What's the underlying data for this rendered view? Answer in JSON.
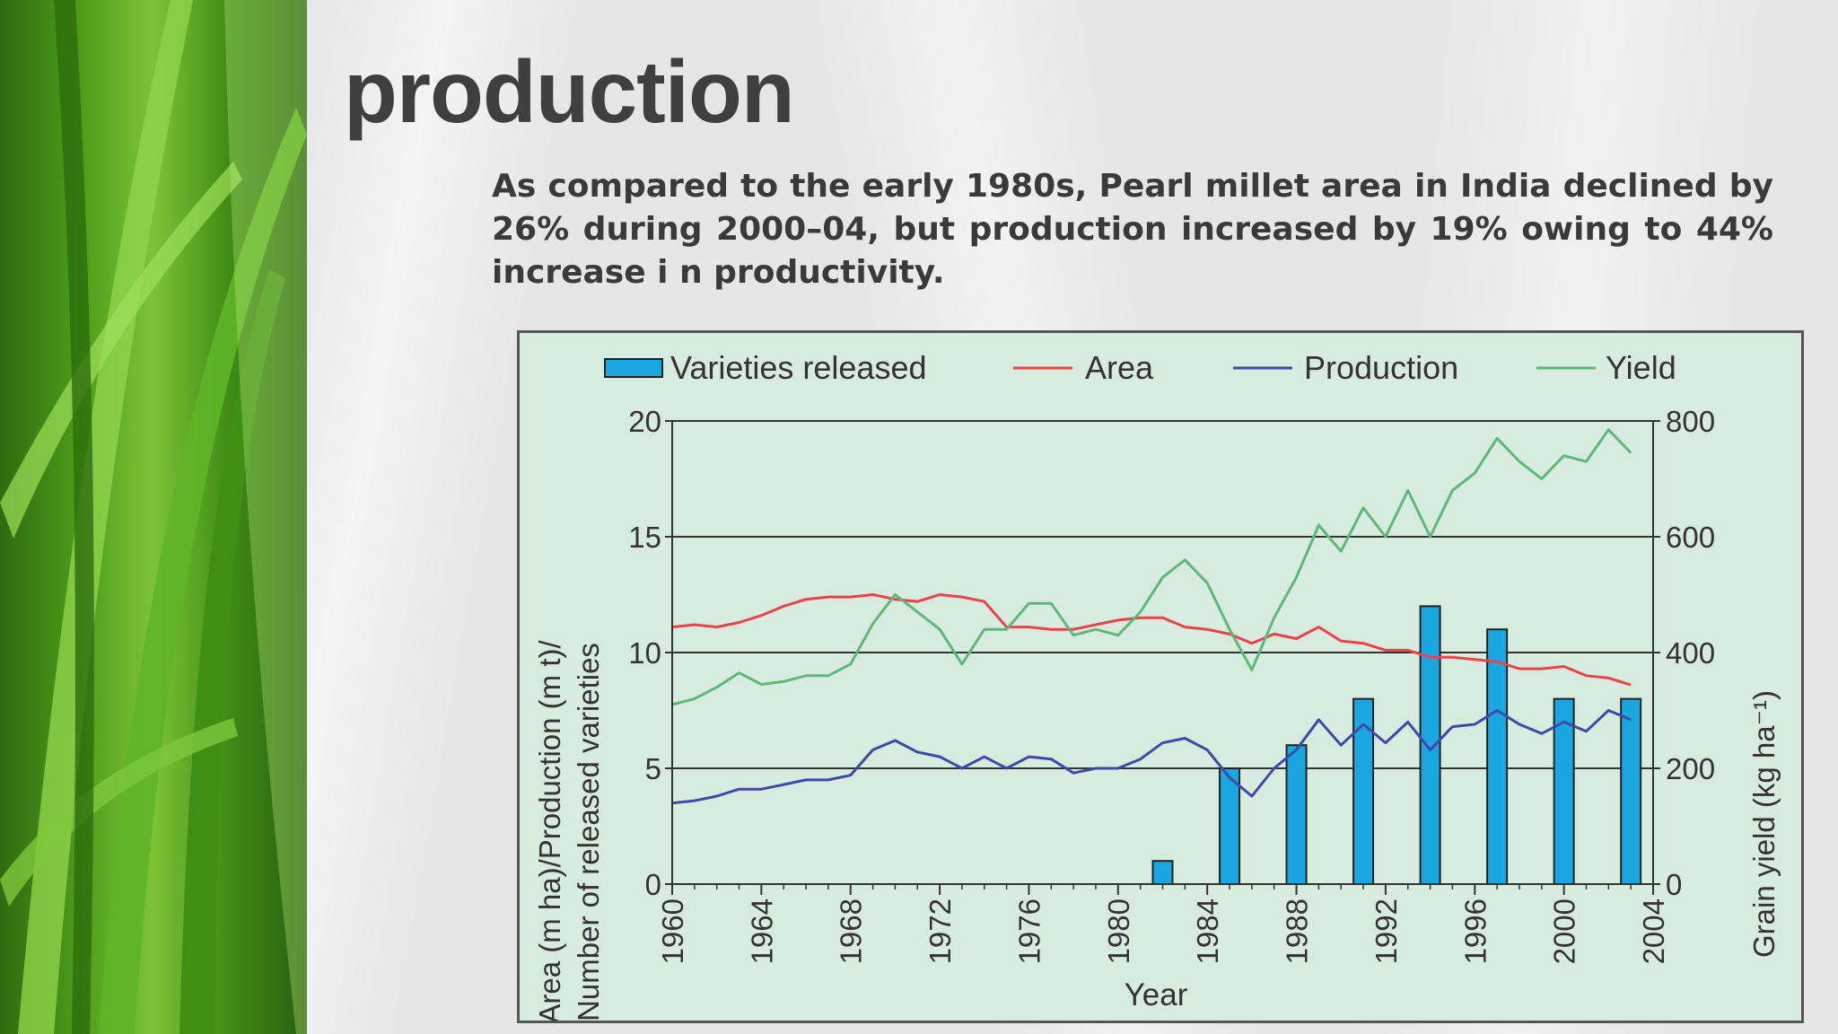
{
  "slide": {
    "title": "production",
    "body": "As compared to the early 1980s, Pearl millet area in India declined by 26% during 2000–04, but production increased by 19% owing to 44% increase i n productivity."
  },
  "colors": {
    "bars": "#1aa6e0",
    "area": "#e8444a",
    "production": "#3f4aa8",
    "yield": "#5fb87a",
    "plot_bg": "#d7ebdf"
  },
  "chart_data": {
    "type": "bar",
    "xlabel": "Year",
    "ylabel_line1": "Area (m ha)/Production (m t)/",
    "ylabel_line2": "Number of released varieties",
    "y2label": "Grain yield (kg ha⁻¹)",
    "xlim": [
      1960,
      2004
    ],
    "ylim": [
      0,
      20
    ],
    "y2lim": [
      0,
      800
    ],
    "x_ticks": [
      "1960",
      "1964",
      "1968",
      "1972",
      "1976",
      "1980",
      "1984",
      "1988",
      "1992",
      "1996",
      "2000",
      "2004"
    ],
    "y_ticks": [
      "0",
      "5",
      "10",
      "15",
      "20"
    ],
    "y2_ticks": [
      "0",
      "200",
      "400",
      "600",
      "800"
    ],
    "legend": {
      "bars": "Varieties released",
      "area": "Area",
      "production": "Production",
      "yield": "Yield"
    },
    "bars": {
      "name": "Varieties released",
      "x": [
        1982,
        1985,
        1988,
        1991,
        1994,
        1997,
        2000,
        2003
      ],
      "values": [
        1,
        5,
        6,
        8,
        12,
        11,
        8,
        8
      ]
    },
    "area": {
      "name": "Area",
      "x": [
        1960,
        1961,
        1962,
        1963,
        1964,
        1965,
        1966,
        1967,
        1968,
        1969,
        1970,
        1971,
        1972,
        1973,
        1974,
        1975,
        1976,
        1977,
        1978,
        1979,
        1980,
        1981,
        1982,
        1983,
        1984,
        1985,
        1986,
        1987,
        1988,
        1989,
        1990,
        1991,
        1992,
        1993,
        1994,
        1995,
        1996,
        1997,
        1998,
        1999,
        2000,
        2001,
        2002,
        2003
      ],
      "values": [
        11.1,
        11.2,
        11.1,
        11.3,
        11.6,
        12.0,
        12.3,
        12.4,
        12.4,
        12.5,
        12.3,
        12.2,
        12.5,
        12.4,
        12.2,
        11.1,
        11.1,
        11.0,
        11.0,
        11.2,
        11.4,
        11.5,
        11.5,
        11.1,
        11.0,
        10.8,
        10.4,
        10.8,
        10.6,
        11.1,
        10.5,
        10.4,
        10.1,
        10.1,
        9.8,
        9.8,
        9.7,
        9.6,
        9.3,
        9.3,
        9.4,
        9.0,
        8.9,
        8.6
      ]
    },
    "production": {
      "name": "Production",
      "x": [
        1960,
        1961,
        1962,
        1963,
        1964,
        1965,
        1966,
        1967,
        1968,
        1969,
        1970,
        1971,
        1972,
        1973,
        1974,
        1975,
        1976,
        1977,
        1978,
        1979,
        1980,
        1981,
        1982,
        1983,
        1984,
        1985,
        1986,
        1987,
        1988,
        1989,
        1990,
        1991,
        1992,
        1993,
        1994,
        1995,
        1996,
        1997,
        1998,
        1999,
        2000,
        2001,
        2002,
        2003
      ],
      "values": [
        3.5,
        3.6,
        3.8,
        4.1,
        4.1,
        4.3,
        4.5,
        4.5,
        4.7,
        5.8,
        6.2,
        5.7,
        5.5,
        5.0,
        5.5,
        5.0,
        5.5,
        5.4,
        4.8,
        5.0,
        5.0,
        5.4,
        6.1,
        6.3,
        5.8,
        4.6,
        3.8,
        5.0,
        5.8,
        7.1,
        6.0,
        6.9,
        6.1,
        7.0,
        5.8,
        6.8,
        6.9,
        7.5,
        6.9,
        6.5,
        7.0,
        6.6,
        7.5,
        7.1
      ]
    },
    "yield": {
      "name": "Yield",
      "x": [
        1960,
        1961,
        1962,
        1963,
        1964,
        1965,
        1966,
        1967,
        1968,
        1969,
        1970,
        1971,
        1972,
        1973,
        1974,
        1975,
        1976,
        1977,
        1978,
        1979,
        1980,
        1981,
        1982,
        1983,
        1984,
        1985,
        1986,
        1987,
        1988,
        1989,
        1990,
        1991,
        1992,
        1993,
        1994,
        1995,
        1996,
        1997,
        1998,
        1999,
        2000,
        2001,
        2002,
        2003
      ],
      "values": [
        310,
        320,
        340,
        365,
        345,
        350,
        360,
        360,
        380,
        450,
        500,
        470,
        440,
        380,
        440,
        440,
        485,
        485,
        430,
        440,
        430,
        470,
        530,
        560,
        520,
        440,
        370,
        460,
        530,
        620,
        575,
        650,
        600,
        680,
        600,
        680,
        710,
        770,
        730,
        700,
        740,
        730,
        785,
        745
      ]
    }
  }
}
